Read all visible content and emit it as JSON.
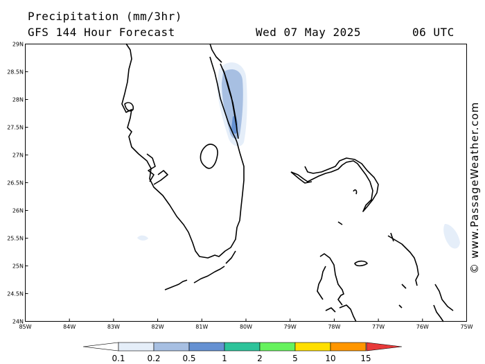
{
  "header": {
    "title": "Precipitation (mm/3hr)",
    "model": "GFS 144 Hour Forecast",
    "date": "Wed 07 May 2025",
    "time": "06 UTC"
  },
  "watermark": "© www.PassageWeather.com",
  "map": {
    "lat_labels": [
      "29N",
      "28.5N",
      "28N",
      "27.5N",
      "27N",
      "26.5N",
      "26N",
      "25.5N",
      "25N",
      "24.5N",
      "24N"
    ],
    "lon_labels": [
      "85W",
      "84W",
      "83W",
      "82W",
      "81W",
      "80W",
      "79W",
      "78W",
      "77W",
      "76W",
      "75W"
    ]
  },
  "legend": {
    "ticks": [
      "0.1",
      "0.2",
      "0.5",
      "1",
      "2",
      "5",
      "10",
      "15"
    ],
    "colors": [
      "#ffffff",
      "#e5eef9",
      "#a7bfe2",
      "#6591d2",
      "#2dc39a",
      "#66f25e",
      "#ffdf00",
      "#ff9600",
      "#e83a3a"
    ]
  }
}
